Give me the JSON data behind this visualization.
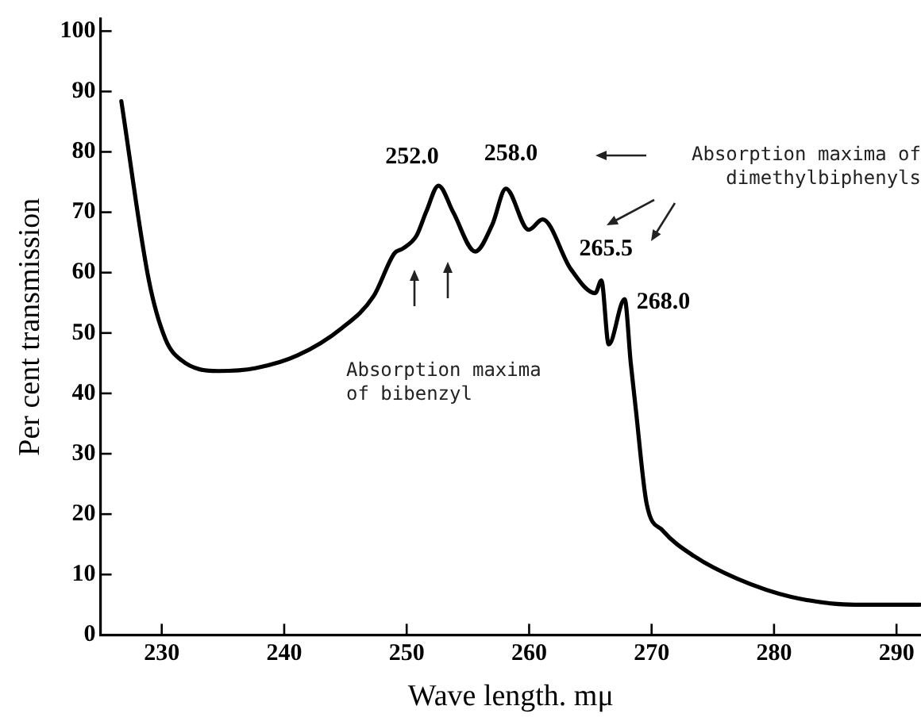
{
  "chart_data": {
    "type": "line",
    "xlabel": "Wave length. mμ",
    "ylabel": "Per cent transmission",
    "x": [
      226.7,
      228.95,
      230.3,
      231.6,
      234.6,
      237.7,
      241.1,
      244.7,
      247.3,
      249,
      249.7,
      250.8,
      251.6,
      252.6,
      253.8,
      255.6,
      257,
      258.1,
      259.96,
      261.1,
      263.4,
      265.4,
      265.9,
      266.5,
      267.8,
      268.3,
      268.7,
      269.6,
      270.9,
      273.5,
      277,
      281.4,
      286.6,
      291.9
    ],
    "series": [
      {
        "color": "#000000",
        "values": [
          88.4,
          58.7,
          49,
          45.5,
          43.7,
          44.2,
          46.3,
          50.8,
          56.1,
          63.2,
          64,
          66.1,
          70.1,
          74.4,
          70,
          63.5,
          68,
          73.9,
          67.1,
          68.8,
          60.6,
          56.6,
          58.7,
          48.1,
          55.6,
          45,
          37.6,
          21.7,
          17.3,
          13,
          9.3,
          6.3,
          5,
          5
        ]
      }
    ],
    "xlim": [
      225,
      292
    ],
    "xticks": [
      230,
      240,
      250,
      260,
      270,
      280,
      290
    ],
    "ylim": [
      0,
      102
    ],
    "yticks": [
      0,
      10,
      20,
      30,
      40,
      50,
      60,
      70,
      80,
      90,
      100
    ],
    "grid": false,
    "legend": false,
    "marker": "none",
    "line_style": "solid",
    "annotations": [
      {
        "text": "252.0",
        "x": 252,
        "y": 74.4
      },
      {
        "text": "258.0",
        "x": 258,
        "y": 73.9
      },
      {
        "text": "265.5",
        "x": 265.5,
        "y": 58.7
      },
      {
        "text": "268.0",
        "x": 268,
        "y": 55.6
      },
      "Absorption maxima of bibenzyl",
      "Absorption maxima of dimethylbiphenyls"
    ]
  }
}
